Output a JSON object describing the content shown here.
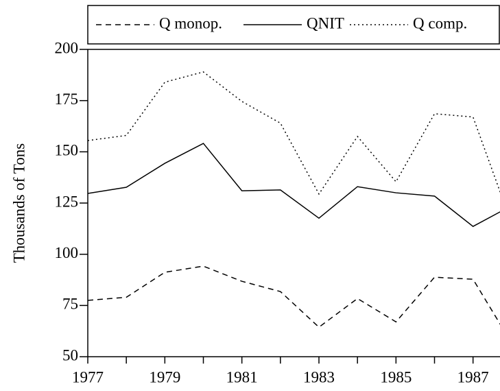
{
  "chart_data": {
    "type": "line",
    "y_label": "Thousands of Tons",
    "x": [
      1977,
      1978,
      1979,
      1980,
      1981,
      1982,
      1983,
      1984,
      1985,
      1986,
      1987,
      1988
    ],
    "series": [
      {
        "name": "Q monop.",
        "color": "#000",
        "dash": "8,6",
        "values": [
          77.5,
          79,
          91.2,
          94.2,
          86.8,
          81.8,
          64.4,
          78.4,
          67,
          88.8,
          87.8,
          56.7
        ]
      },
      {
        "name": "QNIT",
        "color": "#000",
        "dash": "none",
        "values": [
          129.7,
          132.7,
          144.4,
          154.1,
          131,
          131.4,
          117.6,
          133,
          130,
          128.4,
          113.6,
          123.7
        ]
      },
      {
        "name": "Q comp.",
        "color": "#000",
        "dash": "2,4",
        "values": [
          155.5,
          158,
          184,
          189,
          174.6,
          164,
          129.4,
          157.5,
          135.4,
          168.6,
          167,
          115
        ]
      }
    ],
    "xlim": [
      1977,
      1987.7
    ],
    "xticks": [
      1977,
      1979,
      1981,
      1983,
      1985,
      1987
    ],
    "xminorticks": [
      1978,
      1980,
      1982,
      1984,
      1986
    ],
    "ylim": [
      50,
      200
    ],
    "yticks": [
      50,
      75,
      100,
      125,
      150,
      175,
      200
    ],
    "legend": "top"
  }
}
